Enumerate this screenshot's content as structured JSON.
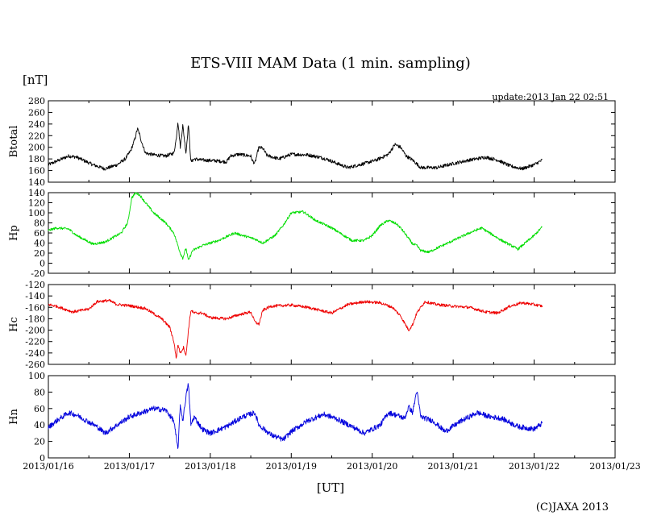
{
  "chart_data": {
    "type": "line",
    "title": "ETS-VIII MAM Data (1 min. sampling)",
    "unit_label": "[nT]",
    "update_text": "update:2013 Jan 22 02:51",
    "xlabel": "[UT]",
    "credit": "(C)JAXA 2013",
    "x_ticks": [
      "2013/01/16",
      "2013/01/17",
      "2013/01/18",
      "2013/01/19",
      "2013/01/20",
      "2013/01/21",
      "2013/01/22",
      "2013/01/23"
    ],
    "xlim_days": [
      0,
      7
    ],
    "data_end_day": 6.1,
    "panels": [
      {
        "name": "Btotal",
        "color": "#000000",
        "ylim": [
          140,
          280
        ],
        "yticks": [
          "140",
          "160",
          "180",
          "200",
          "220",
          "240",
          "260",
          "280"
        ],
        "x": [
          0,
          0.1,
          0.25,
          0.35,
          0.55,
          0.7,
          0.85,
          0.95,
          1.02,
          1.07,
          1.1,
          1.12,
          1.15,
          1.2,
          1.3,
          1.45,
          1.55,
          1.58,
          1.6,
          1.63,
          1.66,
          1.7,
          1.73,
          1.76,
          1.8,
          1.9,
          2.05,
          2.2,
          2.25,
          2.35,
          2.5,
          2.52,
          2.55,
          2.6,
          2.65,
          2.7,
          2.85,
          3.0,
          3.2,
          3.35,
          3.45,
          3.55,
          3.7,
          3.9,
          4.05,
          4.2,
          4.28,
          4.35,
          4.42,
          4.5,
          4.6,
          4.8,
          5.0,
          5.2,
          5.4,
          5.55,
          5.7,
          5.85,
          6.0,
          6.1
        ],
        "y": [
          170,
          176,
          185,
          183,
          170,
          163,
          170,
          180,
          195,
          215,
          232,
          225,
          210,
          190,
          187,
          185,
          190,
          215,
          245,
          200,
          238,
          190,
          240,
          175,
          180,
          178,
          177,
          175,
          185,
          188,
          185,
          177,
          172,
          200,
          198,
          186,
          180,
          188,
          187,
          183,
          179,
          173,
          165,
          172,
          178,
          188,
          205,
          200,
          185,
          178,
          165,
          165,
          172,
          178,
          183,
          178,
          168,
          163,
          170,
          178
        ],
        "noise": 3.0
      },
      {
        "name": "Hp",
        "color": "#00dd00",
        "ylim": [
          -20,
          140
        ],
        "yticks": [
          "-20",
          "0",
          "20",
          "40",
          "60",
          "80",
          "100",
          "120",
          "140"
        ],
        "x": [
          0,
          0.1,
          0.25,
          0.35,
          0.55,
          0.7,
          0.9,
          0.98,
          1.03,
          1.08,
          1.13,
          1.2,
          1.3,
          1.45,
          1.55,
          1.6,
          1.63,
          1.66,
          1.7,
          1.73,
          1.78,
          1.9,
          2.1,
          2.3,
          2.4,
          2.55,
          2.65,
          2.8,
          2.9,
          3.0,
          3.15,
          3.3,
          3.5,
          3.65,
          3.75,
          3.9,
          4.0,
          4.1,
          4.2,
          4.3,
          4.35,
          4.4,
          4.5,
          4.55,
          4.6,
          4.7,
          4.8,
          5.0,
          5.2,
          5.35,
          5.5,
          5.6,
          5.8,
          6.0,
          6.1
        ],
        "y": [
          65,
          70,
          68,
          55,
          38,
          42,
          60,
          80,
          130,
          140,
          135,
          120,
          100,
          80,
          60,
          35,
          20,
          10,
          30,
          5,
          25,
          35,
          45,
          60,
          55,
          48,
          40,
          55,
          75,
          100,
          102,
          85,
          70,
          55,
          45,
          45,
          55,
          75,
          85,
          78,
          70,
          60,
          38,
          35,
          25,
          22,
          30,
          45,
          60,
          70,
          55,
          45,
          28,
          55,
          72
        ],
        "noise": 2.5
      },
      {
        "name": "Hc",
        "color": "#ee0000",
        "ylim": [
          -260,
          -120
        ],
        "yticks": [
          "-260",
          "-240",
          "-220",
          "-200",
          "-180",
          "-160",
          "-140",
          "-120"
        ],
        "x": [
          0,
          0.1,
          0.3,
          0.5,
          0.6,
          0.75,
          0.85,
          1.0,
          1.2,
          1.4,
          1.5,
          1.55,
          1.58,
          1.6,
          1.63,
          1.67,
          1.7,
          1.73,
          1.76,
          1.8,
          1.9,
          2.0,
          2.2,
          2.35,
          2.5,
          2.55,
          2.6,
          2.65,
          2.75,
          3.0,
          3.2,
          3.35,
          3.5,
          3.7,
          3.9,
          4.1,
          4.25,
          4.35,
          4.45,
          4.5,
          4.55,
          4.65,
          4.8,
          5.0,
          5.2,
          5.4,
          5.55,
          5.7,
          5.85,
          6.0,
          6.1
        ],
        "y": [
          -155,
          -158,
          -168,
          -163,
          -150,
          -148,
          -155,
          -157,
          -162,
          -180,
          -195,
          -220,
          -250,
          -225,
          -240,
          -230,
          -245,
          -200,
          -165,
          -170,
          -170,
          -178,
          -180,
          -173,
          -168,
          -185,
          -190,
          -165,
          -158,
          -156,
          -160,
          -165,
          -170,
          -155,
          -150,
          -152,
          -160,
          -175,
          -200,
          -190,
          -170,
          -150,
          -155,
          -158,
          -160,
          -168,
          -170,
          -158,
          -152,
          -155,
          -158
        ],
        "noise": 2.5
      },
      {
        "name": "Hn",
        "color": "#0000dd",
        "ylim": [
          0,
          100
        ],
        "yticks": [
          "0",
          "20",
          "40",
          "60",
          "80",
          "100"
        ],
        "x": [
          0,
          0.1,
          0.25,
          0.35,
          0.6,
          0.7,
          0.85,
          1.0,
          1.15,
          1.3,
          1.45,
          1.55,
          1.6,
          1.63,
          1.66,
          1.7,
          1.73,
          1.76,
          1.8,
          1.9,
          2.0,
          2.2,
          2.4,
          2.55,
          2.6,
          2.75,
          2.9,
          3.0,
          3.2,
          3.4,
          3.55,
          3.75,
          3.9,
          4.1,
          4.2,
          4.3,
          4.4,
          4.45,
          4.5,
          4.55,
          4.6,
          4.75,
          4.9,
          5.1,
          5.3,
          5.45,
          5.6,
          5.8,
          6.0,
          6.1
        ],
        "y": [
          37,
          45,
          55,
          52,
          38,
          30,
          40,
          50,
          55,
          60,
          58,
          45,
          10,
          65,
          45,
          75,
          90,
          40,
          50,
          35,
          30,
          38,
          50,
          55,
          40,
          28,
          22,
          32,
          45,
          53,
          48,
          38,
          30,
          40,
          55,
          52,
          48,
          62,
          55,
          82,
          50,
          45,
          32,
          45,
          55,
          50,
          48,
          38,
          35,
          42
        ],
        "noise": 3.2
      }
    ]
  }
}
